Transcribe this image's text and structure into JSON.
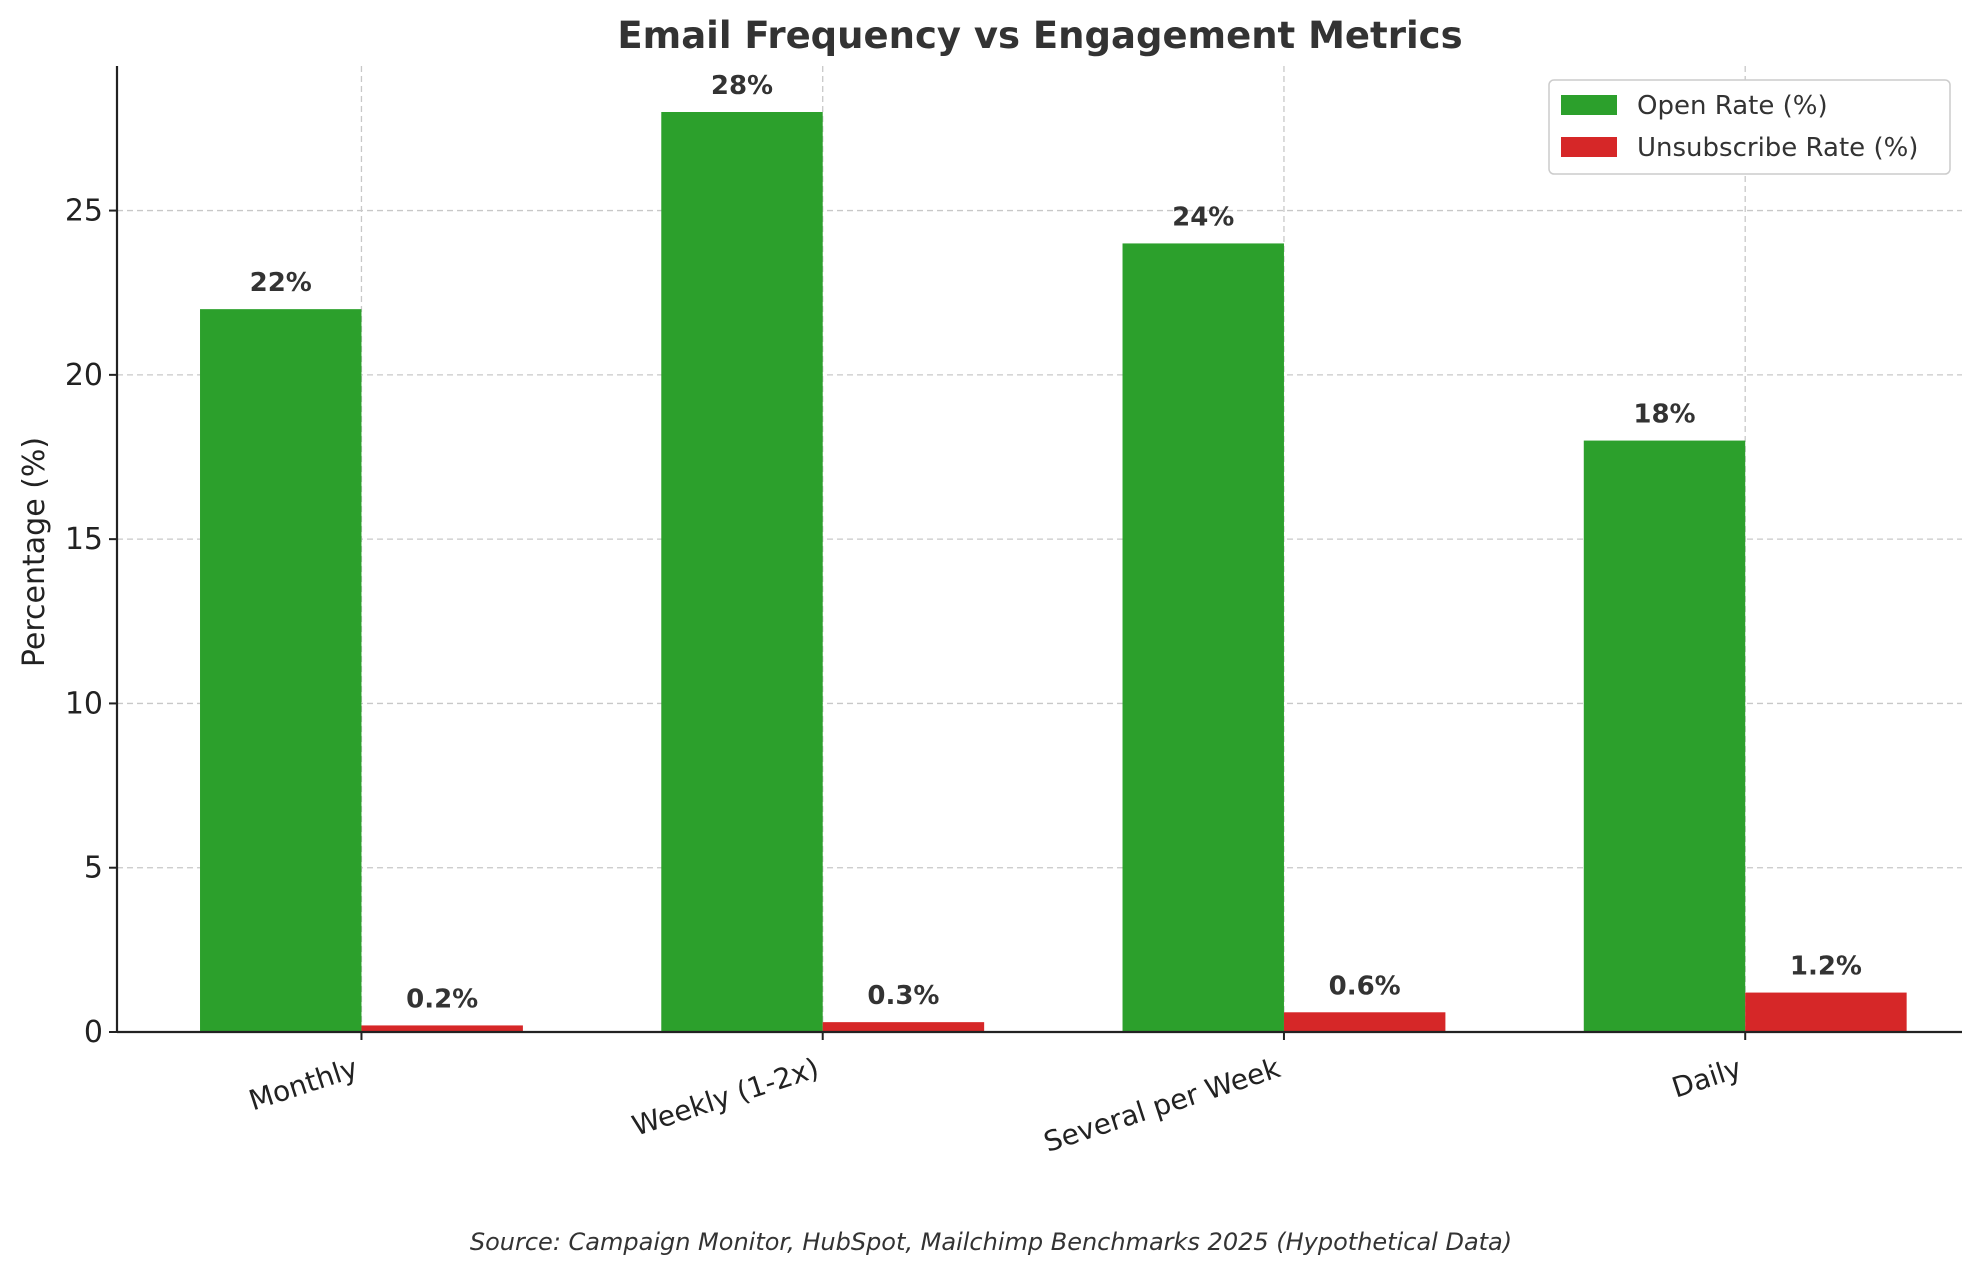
{
  "chart_data": {
    "type": "bar",
    "title": "Email Frequency vs Engagement Metrics",
    "xlabel": "",
    "ylabel": "Percentage (%)",
    "categories": [
      "Monthly",
      "Weekly (1-2x)",
      "Several per Week",
      "Daily"
    ],
    "series": [
      {
        "name": "Open Rate (%)",
        "color": "#2ca02c",
        "values": [
          22,
          28,
          24,
          18
        ],
        "labels": [
          "22%",
          "28%",
          "24%",
          "18%"
        ]
      },
      {
        "name": "Unsubscribe Rate (%)",
        "color": "#d62728",
        "values": [
          0.2,
          0.3,
          0.6,
          1.2
        ],
        "labels": [
          "0.2%",
          "0.3%",
          "0.6%",
          "1.2%"
        ]
      }
    ],
    "ylim": [
      0,
      29.4
    ],
    "yticks": [
      0,
      5,
      10,
      15,
      20,
      25
    ],
    "grid": true,
    "legend_position": "top-right",
    "source": "Source: Campaign Monitor, HubSpot, Mailchimp Benchmarks 2025 (Hypothetical Data)"
  }
}
